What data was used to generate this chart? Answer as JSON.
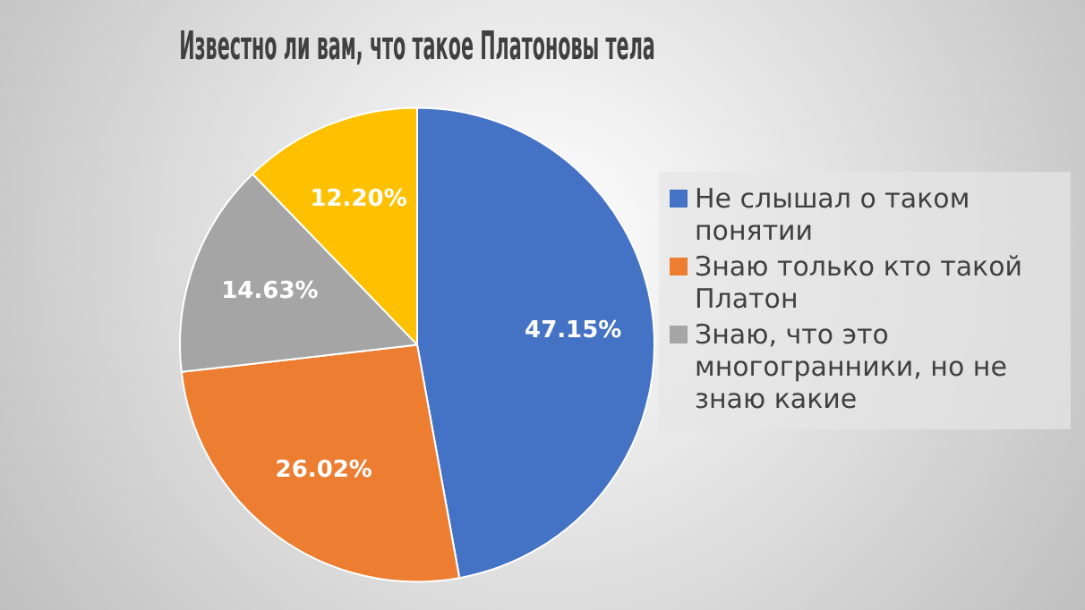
{
  "chart_data": {
    "type": "pie",
    "title": "Известно ли вам, что такое Платоновы тела",
    "categories": [
      "Не слышал о таком понятии",
      "Знаю только кто такой Платон",
      "Знаю, что это многогранники, но не знаю какие",
      null
    ],
    "values": [
      47.15,
      26.02,
      14.63,
      12.2
    ],
    "value_labels": [
      "47.15%",
      "26.02%",
      "14.63%",
      "12.20%"
    ],
    "colors": [
      "#4472c4",
      "#ed7d31",
      "#a5a5a5",
      "#ffc000"
    ],
    "legend": "right"
  }
}
